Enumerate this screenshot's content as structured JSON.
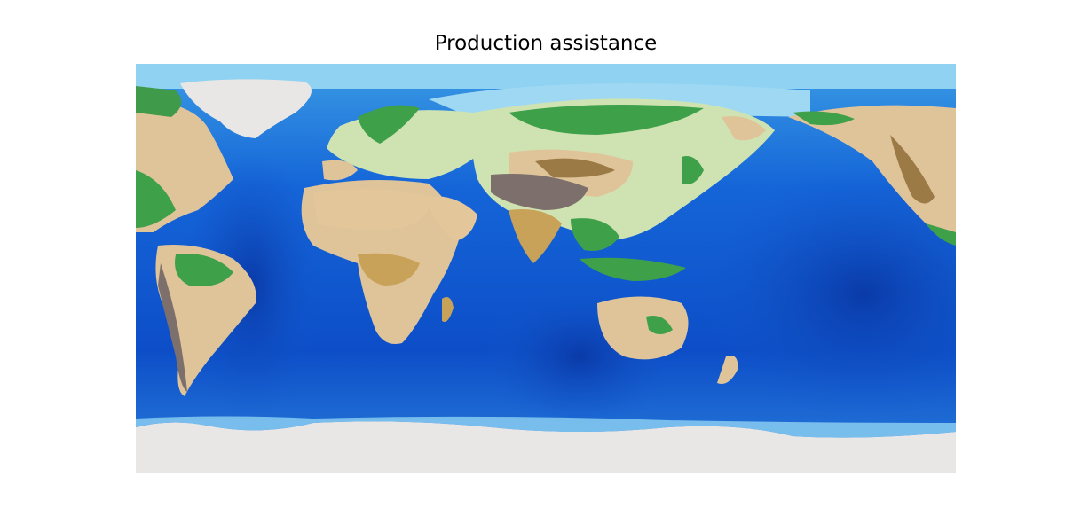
{
  "map": {
    "title": "Production assistance",
    "projection": "equirectangular",
    "basemap": "shaded relief with bathymetry",
    "colors": {
      "deep_ocean": "#0a3fb8",
      "ocean": "#1565d8",
      "shelf": "#49b8ee",
      "lowland": "#3fa04a",
      "plain": "#e3c79a",
      "desert": "#c9a259",
      "highland": "#9b7a45",
      "mountain": "#7d6f6b",
      "ice": "#e9e6e6"
    }
  }
}
